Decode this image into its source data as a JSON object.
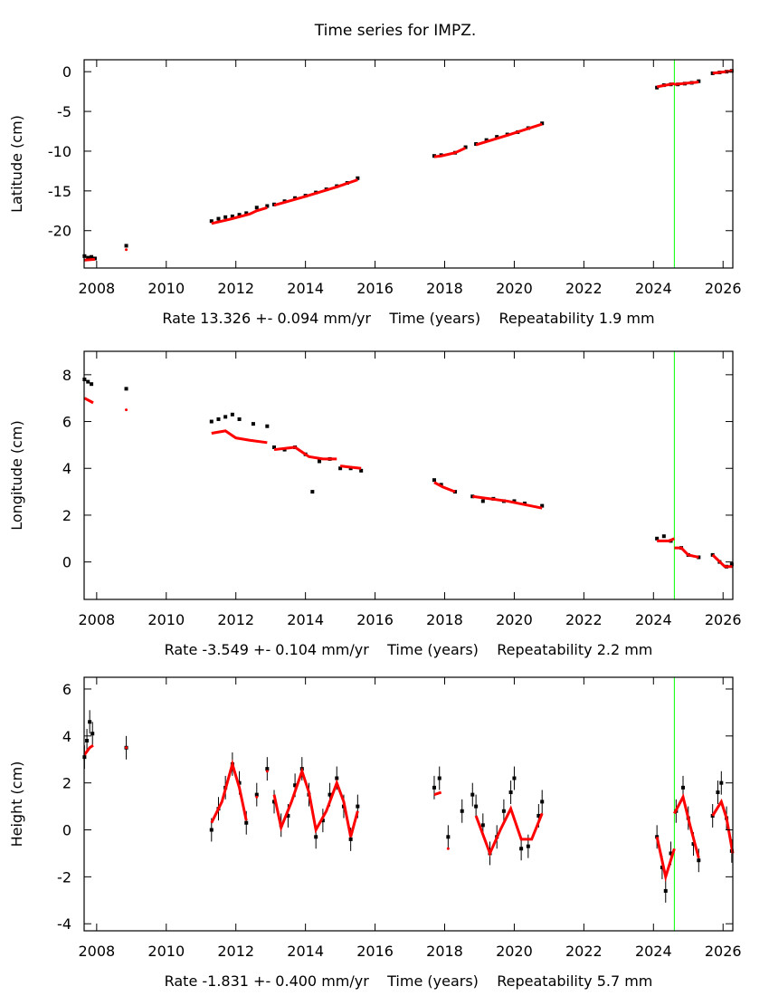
{
  "chart_data": {
    "title": "Time series for IMPZ.",
    "colors": {
      "observations": "#000000",
      "model": "#ff0000",
      "event_line": "#00ff00"
    },
    "event_line_x": 2024.6,
    "panels": [
      {
        "type": "scatter",
        "ylabel": "Latitude (cm)",
        "xlabel_parts": [
          "Rate 13.326 +- 0.094 mm/yr",
          "Time (years)",
          "Repeatability 1.9 mm"
        ],
        "xlim": [
          2007.64,
          2026.28
        ],
        "ylim": [
          -24.7,
          1.5
        ],
        "xticks": [
          2008,
          2010,
          2012,
          2014,
          2016,
          2018,
          2020,
          2022,
          2024,
          2026
        ],
        "yticks": [
          0,
          -5,
          -10,
          -15,
          -20
        ],
        "observations": [
          [
            2007.65,
            -23.2
          ],
          [
            2007.75,
            -23.4
          ],
          [
            2007.85,
            -23.3
          ],
          [
            2007.95,
            -23.5
          ],
          [
            2008.85,
            -21.9
          ],
          [
            2011.3,
            -18.8
          ],
          [
            2011.5,
            -18.5
          ],
          [
            2011.7,
            -18.3
          ],
          [
            2011.9,
            -18.2
          ],
          [
            2012.1,
            -18.0
          ],
          [
            2012.3,
            -17.8
          ],
          [
            2012.6,
            -17.1
          ],
          [
            2012.9,
            -16.9
          ],
          [
            2013.1,
            -16.7
          ],
          [
            2013.4,
            -16.3
          ],
          [
            2013.7,
            -15.9
          ],
          [
            2014.0,
            -15.6
          ],
          [
            2014.3,
            -15.2
          ],
          [
            2014.6,
            -14.8
          ],
          [
            2014.9,
            -14.4
          ],
          [
            2015.2,
            -14.0
          ],
          [
            2015.5,
            -13.4
          ],
          [
            2017.7,
            -10.6
          ],
          [
            2017.9,
            -10.5
          ],
          [
            2018.3,
            -10.2
          ],
          [
            2018.6,
            -9.5
          ],
          [
            2018.9,
            -9.1
          ],
          [
            2019.2,
            -8.6
          ],
          [
            2019.5,
            -8.2
          ],
          [
            2019.8,
            -7.9
          ],
          [
            2020.1,
            -7.6
          ],
          [
            2020.4,
            -7.1
          ],
          [
            2020.8,
            -6.5
          ],
          [
            2024.1,
            -2.0
          ],
          [
            2024.3,
            -1.7
          ],
          [
            2024.5,
            -1.6
          ],
          [
            2024.7,
            -1.6
          ],
          [
            2024.9,
            -1.5
          ],
          [
            2025.1,
            -1.4
          ],
          [
            2025.3,
            -1.2
          ],
          [
            2025.7,
            -0.2
          ],
          [
            2025.9,
            -0.1
          ],
          [
            2026.1,
            0.0
          ],
          [
            2026.25,
            0.1
          ]
        ],
        "model_segments": [
          [
            [
              2007.65,
              -23.7
            ],
            [
              2007.95,
              -23.6
            ]
          ],
          [
            [
              2008.85,
              -22.4
            ]
          ],
          [
            [
              2011.3,
              -19.1
            ],
            [
              2011.8,
              -18.6
            ],
            [
              2012.4,
              -17.9
            ],
            [
              2012.6,
              -17.5
            ],
            [
              2012.9,
              -17.1
            ]
          ],
          [
            [
              2013.1,
              -16.8
            ],
            [
              2014.0,
              -15.7
            ],
            [
              2014.9,
              -14.5
            ],
            [
              2015.5,
              -13.6
            ]
          ],
          [
            [
              2017.7,
              -10.7
            ],
            [
              2017.9,
              -10.6
            ],
            [
              2018.3,
              -10.2
            ],
            [
              2018.6,
              -9.6
            ]
          ],
          [
            [
              2018.9,
              -9.2
            ],
            [
              2019.8,
              -8.0
            ],
            [
              2020.8,
              -6.6
            ]
          ],
          [
            [
              2024.1,
              -1.9
            ],
            [
              2024.6,
              -1.5
            ]
          ],
          [
            [
              2024.6,
              -1.6
            ],
            [
              2025.3,
              -1.3
            ]
          ],
          [
            [
              2025.7,
              -0.2
            ],
            [
              2026.28,
              0.1
            ]
          ]
        ]
      },
      {
        "type": "scatter",
        "ylabel": "Longitude (cm)",
        "xlabel_parts": [
          "Rate -3.549 +- 0.104 mm/yr",
          "Time (years)",
          "Repeatability 2.2 mm"
        ],
        "xlim": [
          2007.64,
          2026.28
        ],
        "ylim": [
          -1.6,
          9.0
        ],
        "xticks": [
          2008,
          2010,
          2012,
          2014,
          2016,
          2018,
          2020,
          2022,
          2024,
          2026
        ],
        "yticks": [
          8,
          6,
          4,
          2,
          0
        ],
        "observations": [
          [
            2007.65,
            7.8
          ],
          [
            2007.75,
            7.7
          ],
          [
            2007.85,
            7.6
          ],
          [
            2008.85,
            7.4
          ],
          [
            2011.3,
            6.0
          ],
          [
            2011.5,
            6.1
          ],
          [
            2011.7,
            6.2
          ],
          [
            2011.9,
            6.3
          ],
          [
            2012.1,
            6.1
          ],
          [
            2012.5,
            5.9
          ],
          [
            2012.9,
            5.8
          ],
          [
            2013.1,
            4.9
          ],
          [
            2013.4,
            4.8
          ],
          [
            2013.7,
            4.9
          ],
          [
            2014.0,
            4.6
          ],
          [
            2014.2,
            3.0
          ],
          [
            2014.4,
            4.3
          ],
          [
            2014.7,
            4.4
          ],
          [
            2015.0,
            4.0
          ],
          [
            2015.3,
            4.0
          ],
          [
            2015.6,
            3.9
          ],
          [
            2017.7,
            3.5
          ],
          [
            2017.9,
            3.3
          ],
          [
            2018.3,
            3.0
          ],
          [
            2018.8,
            2.8
          ],
          [
            2019.1,
            2.6
          ],
          [
            2019.4,
            2.7
          ],
          [
            2019.7,
            2.6
          ],
          [
            2020.0,
            2.6
          ],
          [
            2020.3,
            2.5
          ],
          [
            2020.8,
            2.4
          ],
          [
            2024.1,
            1.0
          ],
          [
            2024.3,
            1.1
          ],
          [
            2024.5,
            0.9
          ],
          [
            2024.8,
            0.6
          ],
          [
            2025.0,
            0.3
          ],
          [
            2025.3,
            0.2
          ],
          [
            2025.7,
            0.3
          ],
          [
            2025.9,
            0.0
          ],
          [
            2026.1,
            -0.2
          ],
          [
            2026.25,
            -0.1
          ]
        ],
        "model_segments": [
          [
            [
              2007.65,
              7.0
            ],
            [
              2007.9,
              6.8
            ]
          ],
          [
            [
              2008.85,
              6.5
            ]
          ],
          [
            [
              2011.3,
              5.5
            ],
            [
              2011.7,
              5.6
            ],
            [
              2012.0,
              5.3
            ],
            [
              2012.4,
              5.2
            ],
            [
              2012.9,
              5.1
            ]
          ],
          [
            [
              2013.1,
              4.8
            ],
            [
              2013.7,
              4.9
            ],
            [
              2014.1,
              4.5
            ],
            [
              2014.5,
              4.4
            ],
            [
              2014.9,
              4.4
            ]
          ],
          [
            [
              2015.0,
              4.1
            ],
            [
              2015.6,
              4.0
            ]
          ],
          [
            [
              2017.7,
              3.4
            ],
            [
              2017.95,
              3.2
            ],
            [
              2018.3,
              3.0
            ]
          ],
          [
            [
              2018.8,
              2.8
            ],
            [
              2019.8,
              2.6
            ],
            [
              2020.8,
              2.3
            ]
          ],
          [
            [
              2024.1,
              0.9
            ],
            [
              2024.45,
              0.9
            ],
            [
              2024.6,
              1.0
            ]
          ],
          [
            [
              2024.6,
              0.6
            ],
            [
              2024.8,
              0.6
            ],
            [
              2025.0,
              0.3
            ],
            [
              2025.3,
              0.2
            ]
          ],
          [
            [
              2025.7,
              0.3
            ],
            [
              2026.05,
              -0.2
            ],
            [
              2026.28,
              -0.2
            ]
          ]
        ]
      },
      {
        "type": "scatter",
        "ylabel": "Height (cm)",
        "xlabel_parts": [
          "Rate -1.831 +- 0.400 mm/yr",
          "Time (years)",
          "Repeatability 5.7 mm"
        ],
        "xlim": [
          2007.64,
          2026.28
        ],
        "ylim": [
          -4.3,
          6.5
        ],
        "xticks": [
          2008,
          2010,
          2012,
          2014,
          2016,
          2018,
          2020,
          2022,
          2024,
          2026
        ],
        "yticks": [
          6,
          4,
          2,
          0,
          -2,
          -4
        ],
        "observations": [
          [
            2007.65,
            3.1
          ],
          [
            2007.72,
            3.8
          ],
          [
            2007.8,
            4.6
          ],
          [
            2007.88,
            4.1
          ],
          [
            2008.85,
            3.5
          ],
          [
            2011.3,
            0.0
          ],
          [
            2011.5,
            0.9
          ],
          [
            2011.7,
            1.8
          ],
          [
            2011.9,
            2.8
          ],
          [
            2012.1,
            2.0
          ],
          [
            2012.3,
            0.3
          ],
          [
            2012.6,
            1.5
          ],
          [
            2012.9,
            2.6
          ],
          [
            2013.1,
            1.2
          ],
          [
            2013.3,
            0.2
          ],
          [
            2013.5,
            0.6
          ],
          [
            2013.7,
            1.9
          ],
          [
            2013.9,
            2.6
          ],
          [
            2014.1,
            1.5
          ],
          [
            2014.3,
            -0.3
          ],
          [
            2014.5,
            0.4
          ],
          [
            2014.7,
            1.5
          ],
          [
            2014.9,
            2.2
          ],
          [
            2015.1,
            1.0
          ],
          [
            2015.3,
            -0.4
          ],
          [
            2015.5,
            1.0
          ],
          [
            2017.7,
            1.8
          ],
          [
            2017.85,
            2.2
          ],
          [
            2018.1,
            -0.3
          ],
          [
            2018.5,
            0.8
          ],
          [
            2018.8,
            1.5
          ],
          [
            2018.9,
            1.0
          ],
          [
            2019.1,
            0.2
          ],
          [
            2019.3,
            -1.0
          ],
          [
            2019.5,
            -0.3
          ],
          [
            2019.7,
            0.8
          ],
          [
            2019.9,
            1.6
          ],
          [
            2020.0,
            2.2
          ],
          [
            2020.2,
            -0.8
          ],
          [
            2020.4,
            -0.7
          ],
          [
            2020.7,
            0.6
          ],
          [
            2020.8,
            1.2
          ],
          [
            2024.1,
            -0.3
          ],
          [
            2024.25,
            -1.6
          ],
          [
            2024.35,
            -2.6
          ],
          [
            2024.5,
            -1.0
          ],
          [
            2024.65,
            0.8
          ],
          [
            2024.85,
            1.8
          ],
          [
            2025.0,
            0.5
          ],
          [
            2025.15,
            -0.6
          ],
          [
            2025.3,
            -1.3
          ],
          [
            2025.7,
            0.6
          ],
          [
            2025.85,
            1.6
          ],
          [
            2025.95,
            2.0
          ],
          [
            2026.1,
            0.5
          ],
          [
            2026.25,
            -0.9
          ]
        ],
        "model_segments": [
          [
            [
              2007.65,
              3.2
            ],
            [
              2007.8,
              3.5
            ],
            [
              2007.9,
              3.6
            ]
          ],
          [
            [
              2008.85,
              3.5
            ]
          ],
          [
            [
              2011.3,
              0.3
            ],
            [
              2011.6,
              1.2
            ],
            [
              2011.9,
              2.8
            ],
            [
              2012.1,
              1.8
            ],
            [
              2012.3,
              0.4
            ]
          ],
          [
            [
              2012.6,
              1.4
            ]
          ],
          [
            [
              2012.9,
              2.5
            ]
          ],
          [
            [
              2013.1,
              1.5
            ],
            [
              2013.3,
              0.1
            ],
            [
              2013.6,
              1.2
            ],
            [
              2013.9,
              2.5
            ],
            [
              2014.1,
              1.6
            ],
            [
              2014.3,
              0.0
            ],
            [
              2014.6,
              0.8
            ],
            [
              2014.9,
              2.0
            ],
            [
              2015.1,
              1.2
            ],
            [
              2015.3,
              -0.3
            ],
            [
              2015.5,
              0.8
            ]
          ],
          [
            [
              2017.7,
              1.5
            ],
            [
              2017.9,
              1.6
            ]
          ],
          [
            [
              2018.1,
              -0.8
            ]
          ],
          [
            [
              2018.9,
              0.6
            ],
            [
              2019.3,
              -1.0
            ],
            [
              2019.6,
              0.0
            ],
            [
              2019.9,
              0.9
            ],
            [
              2020.2,
              -0.4
            ],
            [
              2020.5,
              -0.4
            ],
            [
              2020.8,
              0.7
            ]
          ],
          [
            [
              2024.1,
              -0.3
            ],
            [
              2024.35,
              -2.0
            ],
            [
              2024.6,
              -0.8
            ]
          ],
          [
            [
              2024.6,
              0.7
            ],
            [
              2024.85,
              1.4
            ],
            [
              2025.05,
              0.2
            ],
            [
              2025.3,
              -1.2
            ]
          ],
          [
            [
              2025.7,
              0.6
            ],
            [
              2025.95,
              1.2
            ],
            [
              2026.1,
              0.5
            ],
            [
              2026.28,
              -1.0
            ]
          ]
        ]
      }
    ]
  }
}
